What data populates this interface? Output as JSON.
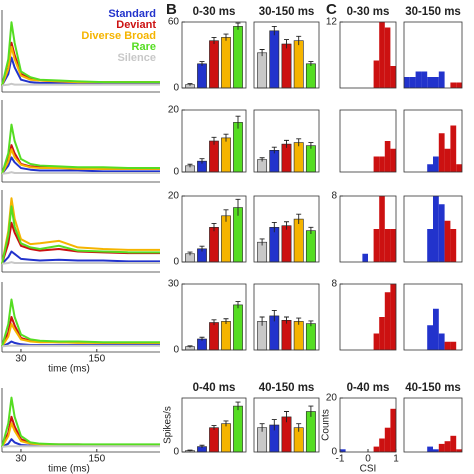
{
  "panel_labels": [
    "B",
    "C"
  ],
  "chart_data": [
    {
      "type": "line",
      "x": [
        0,
        10,
        15,
        20,
        30,
        45,
        60,
        90,
        120,
        160,
        200,
        250
      ],
      "xlim": [
        0,
        250
      ],
      "ylim": [
        0,
        100
      ],
      "legend": "upper right",
      "series": [
        {
          "name": "Standard",
          "color": "#2233cc",
          "values": [
            8,
            22,
            42,
            30,
            15,
            12,
            11,
            11,
            10,
            10,
            10,
            10
          ]
        },
        {
          "name": "Deviant",
          "color": "#cc1111",
          "values": [
            8,
            30,
            60,
            45,
            22,
            16,
            14,
            13,
            12,
            12,
            12,
            12
          ]
        },
        {
          "name": "Diverse Broad",
          "color": "#f5b400",
          "values": [
            8,
            28,
            55,
            40,
            20,
            15,
            14,
            13,
            12,
            12,
            12,
            12
          ]
        },
        {
          "name": "Rare",
          "color": "#55dd22",
          "values": [
            8,
            40,
            85,
            60,
            25,
            18,
            15,
            14,
            13,
            12,
            12,
            12
          ]
        },
        {
          "name": "Silence",
          "color": "#c8c8c8",
          "values": [
            8,
            9,
            10,
            9,
            9,
            9,
            9,
            9,
            9,
            9,
            9,
            9
          ]
        }
      ]
    },
    {
      "type": "bar",
      "title": "0-30 ms",
      "ylim": [
        0,
        60
      ],
      "yticks": [
        0,
        60
      ],
      "values": [
        3,
        22,
        43,
        46,
        56
      ],
      "errors": [
        1,
        2,
        3,
        3,
        3
      ],
      "colors": [
        "#c8c8c8",
        "#2233cc",
        "#cc1111",
        "#f5b400",
        "#55dd22"
      ]
    },
    {
      "type": "bar",
      "title": "30-150 ms",
      "ylim": [
        0,
        60
      ],
      "values": [
        32,
        52,
        40,
        43,
        22
      ],
      "errors": [
        3,
        4,
        4,
        4,
        2
      ],
      "colors": [
        "#c8c8c8",
        "#2233cc",
        "#cc1111",
        "#f5b400",
        "#55dd22"
      ]
    },
    {
      "type": "histogram",
      "title": "0-30 ms",
      "xlim": [
        -1,
        1
      ],
      "ylim": [
        0,
        12
      ],
      "yticks": [
        12
      ],
      "bins": [
        -1,
        -0.8,
        -0.6,
        -0.4,
        -0.2,
        0,
        0.2,
        0.4,
        0.6,
        0.8,
        1
      ],
      "values": [
        0,
        0,
        0,
        0,
        0,
        0,
        5,
        12,
        11,
        4
      ],
      "colors": [
        "#2233cc",
        "#2233cc",
        "#2233cc",
        "#2233cc",
        "#2233cc",
        "#cc1111",
        "#cc1111",
        "#cc1111",
        "#cc1111",
        "#cc1111"
      ]
    },
    {
      "type": "histogram",
      "title": "30-150 ms",
      "xlim": [
        -1,
        1
      ],
      "ylim": [
        0,
        12
      ],
      "bins": [
        -1,
        -0.8,
        -0.6,
        -0.4,
        -0.2,
        0,
        0.2,
        0.4,
        0.6,
        0.8,
        1
      ],
      "values": [
        2,
        2,
        3,
        3,
        2,
        2,
        3,
        0,
        1,
        1
      ],
      "colors": [
        "#2233cc",
        "#2233cc",
        "#2233cc",
        "#2233cc",
        "#2233cc",
        "#2233cc",
        "#2233cc",
        "#cc1111",
        "#cc1111",
        "#cc1111"
      ]
    },
    {
      "type": "line",
      "x": [
        0,
        10,
        15,
        20,
        30,
        45,
        60,
        90,
        120,
        160,
        200,
        250
      ],
      "xlim": [
        0,
        250
      ],
      "ylim": [
        0,
        100
      ],
      "series": [
        {
          "color": "#2233cc",
          "values": [
            10,
            20,
            30,
            24,
            17,
            15,
            14,
            14,
            14,
            13,
            13,
            13
          ]
        },
        {
          "color": "#cc1111",
          "values": [
            10,
            28,
            45,
            35,
            22,
            19,
            18,
            17,
            17,
            16,
            16,
            16
          ]
        },
        {
          "color": "#f5b400",
          "values": [
            10,
            25,
            40,
            30,
            21,
            18,
            17,
            17,
            16,
            16,
            16,
            16
          ]
        },
        {
          "color": "#55dd22",
          "values": [
            10,
            35,
            70,
            50,
            28,
            22,
            20,
            19,
            18,
            18,
            17,
            17
          ]
        },
        {
          "color": "#c8c8c8",
          "values": [
            10,
            11,
            12,
            11,
            11,
            11,
            11,
            11,
            11,
            11,
            11,
            11
          ]
        }
      ]
    },
    {
      "type": "bar",
      "ylim": [
        0,
        20
      ],
      "yticks": [
        0,
        20
      ],
      "values": [
        2,
        3.5,
        10,
        11,
        16
      ],
      "errors": [
        0.5,
        0.8,
        1.2,
        1.2,
        2
      ],
      "colors": [
        "#c8c8c8",
        "#2233cc",
        "#cc1111",
        "#f5b400",
        "#55dd22"
      ]
    },
    {
      "type": "bar",
      "ylim": [
        0,
        20
      ],
      "values": [
        4,
        7,
        9,
        9.5,
        8.5
      ],
      "errors": [
        0.6,
        1,
        1.2,
        1.2,
        1
      ],
      "colors": [
        "#c8c8c8",
        "#2233cc",
        "#cc1111",
        "#f5b400",
        "#55dd22"
      ]
    },
    {
      "type": "histogram",
      "xlim": [
        -1,
        1
      ],
      "ylim": [
        0,
        8
      ],
      "bins": [
        -1,
        -0.8,
        -0.6,
        -0.4,
        -0.2,
        0,
        0.2,
        0.4,
        0.6,
        0.8,
        1
      ],
      "values": [
        0,
        0,
        0,
        0,
        0,
        0,
        2,
        2,
        4,
        3
      ],
      "colors": [
        "#2233cc",
        "#2233cc",
        "#2233cc",
        "#2233cc",
        "#2233cc",
        "#cc1111",
        "#cc1111",
        "#cc1111",
        "#cc1111",
        "#cc1111"
      ]
    },
    {
      "type": "histogram",
      "xlim": [
        -1,
        1
      ],
      "ylim": [
        0,
        8
      ],
      "bins": [
        -1,
        -0.8,
        -0.6,
        -0.4,
        -0.2,
        0,
        0.2,
        0.4,
        0.6,
        0.8,
        1
      ],
      "values": [
        0,
        0,
        0,
        0,
        1,
        2,
        5,
        3,
        6,
        1
      ],
      "colors": [
        "#2233cc",
        "#2233cc",
        "#2233cc",
        "#2233cc",
        "#2233cc",
        "#2233cc",
        "#cc1111",
        "#cc1111",
        "#cc1111",
        "#cc1111"
      ]
    },
    {
      "type": "line",
      "x": [
        0,
        10,
        15,
        20,
        30,
        45,
        60,
        90,
        120,
        160,
        200,
        250
      ],
      "xlim": [
        0,
        250
      ],
      "ylim": [
        0,
        100
      ],
      "series": [
        {
          "color": "#2233cc",
          "values": [
            10,
            18,
            25,
            22,
            16,
            15,
            14,
            15,
            14,
            14,
            13,
            13
          ]
        },
        {
          "color": "#cc1111",
          "values": [
            10,
            35,
            60,
            48,
            32,
            28,
            26,
            28,
            25,
            24,
            23,
            23
          ]
        },
        {
          "color": "#f5b400",
          "values": [
            10,
            50,
            90,
            65,
            40,
            34,
            35,
            38,
            30,
            28,
            27,
            27
          ]
        },
        {
          "color": "#55dd22",
          "values": [
            10,
            45,
            80,
            55,
            35,
            30,
            28,
            32,
            26,
            25,
            24,
            24
          ]
        },
        {
          "color": "#c8c8c8",
          "values": [
            10,
            11,
            12,
            11,
            11,
            11,
            11,
            11,
            11,
            11,
            11,
            11
          ]
        }
      ]
    },
    {
      "type": "bar",
      "ylim": [
        0,
        20
      ],
      "yticks": [
        0,
        20
      ],
      "values": [
        2.5,
        4,
        10.5,
        14,
        16.5
      ],
      "errors": [
        0.5,
        0.8,
        1.2,
        1.8,
        2.5
      ],
      "colors": [
        "#c8c8c8",
        "#2233cc",
        "#cc1111",
        "#f5b400",
        "#55dd22"
      ]
    },
    {
      "type": "bar",
      "ylim": [
        0,
        20
      ],
      "values": [
        6,
        10.5,
        11,
        13,
        9.5
      ],
      "errors": [
        1,
        1.5,
        1.2,
        1.5,
        1
      ],
      "colors": [
        "#c8c8c8",
        "#2233cc",
        "#cc1111",
        "#f5b400",
        "#55dd22"
      ]
    },
    {
      "type": "histogram",
      "xlim": [
        -1,
        1
      ],
      "ylim": [
        0,
        8
      ],
      "yticks": [
        8
      ],
      "bins": [
        -1,
        -0.8,
        -0.6,
        -0.4,
        -0.2,
        0,
        0.2,
        0.4,
        0.6,
        0.8,
        1
      ],
      "values": [
        0,
        0,
        0,
        0,
        1,
        0,
        4,
        8,
        4,
        4
      ],
      "colors": [
        "#2233cc",
        "#2233cc",
        "#2233cc",
        "#2233cc",
        "#2233cc",
        "#cc1111",
        "#cc1111",
        "#cc1111",
        "#cc1111",
        "#cc1111"
      ]
    },
    {
      "type": "histogram",
      "xlim": [
        -1,
        1
      ],
      "ylim": [
        0,
        8
      ],
      "bins": [
        -1,
        -0.8,
        -0.6,
        -0.4,
        -0.2,
        0,
        0.2,
        0.4,
        0.6,
        0.8,
        1
      ],
      "values": [
        0,
        0,
        0,
        0,
        4,
        8,
        7,
        5,
        4,
        0
      ],
      "colors": [
        "#2233cc",
        "#2233cc",
        "#2233cc",
        "#2233cc",
        "#2233cc",
        "#2233cc",
        "#2233cc",
        "#cc1111",
        "#cc1111",
        "#cc1111"
      ]
    },
    {
      "type": "line",
      "x": [
        0,
        10,
        15,
        20,
        30,
        45,
        60,
        90,
        120,
        160,
        200,
        250
      ],
      "xlim": [
        0,
        250
      ],
      "ylim": [
        0,
        100
      ],
      "xticks": [
        30,
        150
      ],
      "xlabel": "time (ms)",
      "series": [
        {
          "color": "#2233cc",
          "values": [
            8,
            12,
            15,
            13,
            11,
            10,
            10,
            10,
            10,
            10,
            10,
            10
          ]
        },
        {
          "color": "#cc1111",
          "values": [
            8,
            28,
            50,
            38,
            20,
            16,
            15,
            14,
            14,
            13,
            13,
            13
          ]
        },
        {
          "color": "#f5b400",
          "values": [
            8,
            22,
            40,
            32,
            18,
            15,
            14,
            14,
            13,
            13,
            13,
            13
          ]
        },
        {
          "color": "#55dd22",
          "values": [
            8,
            40,
            75,
            50,
            25,
            18,
            16,
            15,
            15,
            14,
            14,
            14
          ]
        },
        {
          "color": "#c8c8c8",
          "values": [
            8,
            9,
            9,
            9,
            9,
            9,
            9,
            9,
            9,
            9,
            9,
            9
          ]
        }
      ]
    },
    {
      "type": "bar",
      "ylim": [
        0,
        30
      ],
      "yticks": [
        0,
        30
      ],
      "values": [
        1.5,
        5,
        12.5,
        13,
        20.5
      ],
      "errors": [
        0.4,
        0.8,
        1.2,
        1.2,
        1.5
      ],
      "colors": [
        "#c8c8c8",
        "#2233cc",
        "#cc1111",
        "#f5b400",
        "#55dd22"
      ]
    },
    {
      "type": "bar",
      "ylim": [
        0,
        30
      ],
      "values": [
        13,
        15.5,
        13.5,
        13,
        12
      ],
      "errors": [
        2,
        2.5,
        1.5,
        1.5,
        1.2
      ],
      "colors": [
        "#c8c8c8",
        "#2233cc",
        "#cc1111",
        "#f5b400",
        "#55dd22"
      ]
    },
    {
      "type": "histogram",
      "xlim": [
        -1,
        1
      ],
      "ylim": [
        0,
        8
      ],
      "yticks": [
        8
      ],
      "bins": [
        -1,
        -0.8,
        -0.6,
        -0.4,
        -0.2,
        0,
        0.2,
        0.4,
        0.6,
        0.8,
        1
      ],
      "values": [
        0,
        0,
        0,
        0,
        0,
        0,
        2,
        4,
        7,
        8
      ],
      "colors": [
        "#2233cc",
        "#2233cc",
        "#2233cc",
        "#2233cc",
        "#2233cc",
        "#cc1111",
        "#cc1111",
        "#cc1111",
        "#cc1111",
        "#cc1111"
      ]
    },
    {
      "type": "histogram",
      "xlim": [
        -1,
        1
      ],
      "ylim": [
        0,
        8
      ],
      "bins": [
        -1,
        -0.8,
        -0.6,
        -0.4,
        -0.2,
        0,
        0.2,
        0.4,
        0.6,
        0.8,
        1
      ],
      "values": [
        0,
        0,
        0,
        0,
        3,
        5,
        2,
        1,
        1,
        0
      ],
      "colors": [
        "#2233cc",
        "#2233cc",
        "#2233cc",
        "#2233cc",
        "#2233cc",
        "#2233cc",
        "#2233cc",
        "#cc1111",
        "#cc1111",
        "#cc1111"
      ]
    },
    {
      "type": "line",
      "x": [
        0,
        10,
        15,
        20,
        30,
        45,
        60,
        90,
        120,
        160,
        200,
        250
      ],
      "xlim": [
        0,
        250
      ],
      "ylim": [
        0,
        100
      ],
      "xticks": [
        30,
        150
      ],
      "xlabel": "time (ms)",
      "series": [
        {
          "color": "#2233cc",
          "values": [
            8,
            13,
            20,
            15,
            11,
            10,
            10,
            10,
            10,
            10,
            10,
            10
          ]
        },
        {
          "color": "#cc1111",
          "values": [
            8,
            30,
            55,
            40,
            20,
            14,
            12,
            12,
            12,
            11,
            11,
            11
          ]
        },
        {
          "color": "#f5b400",
          "values": [
            8,
            25,
            45,
            33,
            17,
            13,
            12,
            11,
            11,
            11,
            11,
            11
          ]
        },
        {
          "color": "#55dd22",
          "values": [
            8,
            45,
            85,
            55,
            25,
            15,
            13,
            12,
            12,
            12,
            12,
            12
          ]
        },
        {
          "color": "#c8c8c8",
          "values": [
            8,
            9,
            9,
            9,
            9,
            9,
            9,
            9,
            9,
            9,
            9,
            9
          ]
        }
      ]
    },
    {
      "type": "bar",
      "title": "0-40 ms",
      "ylabel": "Spikes/s",
      "ylim": [
        0,
        20
      ],
      "yticks": [
        0
      ],
      "values": [
        0.5,
        2,
        9,
        10.5,
        17
      ],
      "errors": [
        0.2,
        0.5,
        0.8,
        1,
        1.5
      ],
      "colors": [
        "#c8c8c8",
        "#2233cc",
        "#cc1111",
        "#f5b400",
        "#55dd22"
      ]
    },
    {
      "type": "bar",
      "title": "40-150 ms",
      "ylim": [
        0,
        20
      ],
      "values": [
        9,
        10,
        13,
        9,
        15
      ],
      "errors": [
        1.5,
        2,
        2,
        1.5,
        2
      ],
      "colors": [
        "#c8c8c8",
        "#2233cc",
        "#cc1111",
        "#f5b400",
        "#55dd22"
      ]
    },
    {
      "type": "histogram",
      "title": "0-40 ms",
      "xlabel": "CSI",
      "ylabel": "Counts",
      "xlim": [
        -1,
        1
      ],
      "ylim": [
        0,
        20
      ],
      "xticks": [
        -1,
        0,
        1
      ],
      "yticks": [
        0,
        20
      ],
      "bins": [
        -1,
        -0.8,
        -0.6,
        -0.4,
        -0.2,
        0,
        0.2,
        0.4,
        0.6,
        0.8,
        1
      ],
      "values": [
        1,
        0,
        0,
        0,
        0,
        0,
        2,
        5,
        9,
        16
      ],
      "colors": [
        "#2233cc",
        "#2233cc",
        "#2233cc",
        "#2233cc",
        "#2233cc",
        "#cc1111",
        "#cc1111",
        "#cc1111",
        "#cc1111",
        "#cc1111"
      ]
    },
    {
      "type": "histogram",
      "title": "40-150 ms",
      "xlim": [
        -1,
        1
      ],
      "ylim": [
        0,
        20
      ],
      "bins": [
        -1,
        -0.8,
        -0.6,
        -0.4,
        -0.2,
        0,
        0.2,
        0.4,
        0.6,
        0.8,
        1
      ],
      "values": [
        0,
        0,
        0,
        0,
        2,
        1,
        3,
        4,
        6,
        1
      ],
      "colors": [
        "#2233cc",
        "#2233cc",
        "#2233cc",
        "#2233cc",
        "#2233cc",
        "#2233cc",
        "#cc1111",
        "#cc1111",
        "#cc1111",
        "#cc1111"
      ]
    }
  ]
}
